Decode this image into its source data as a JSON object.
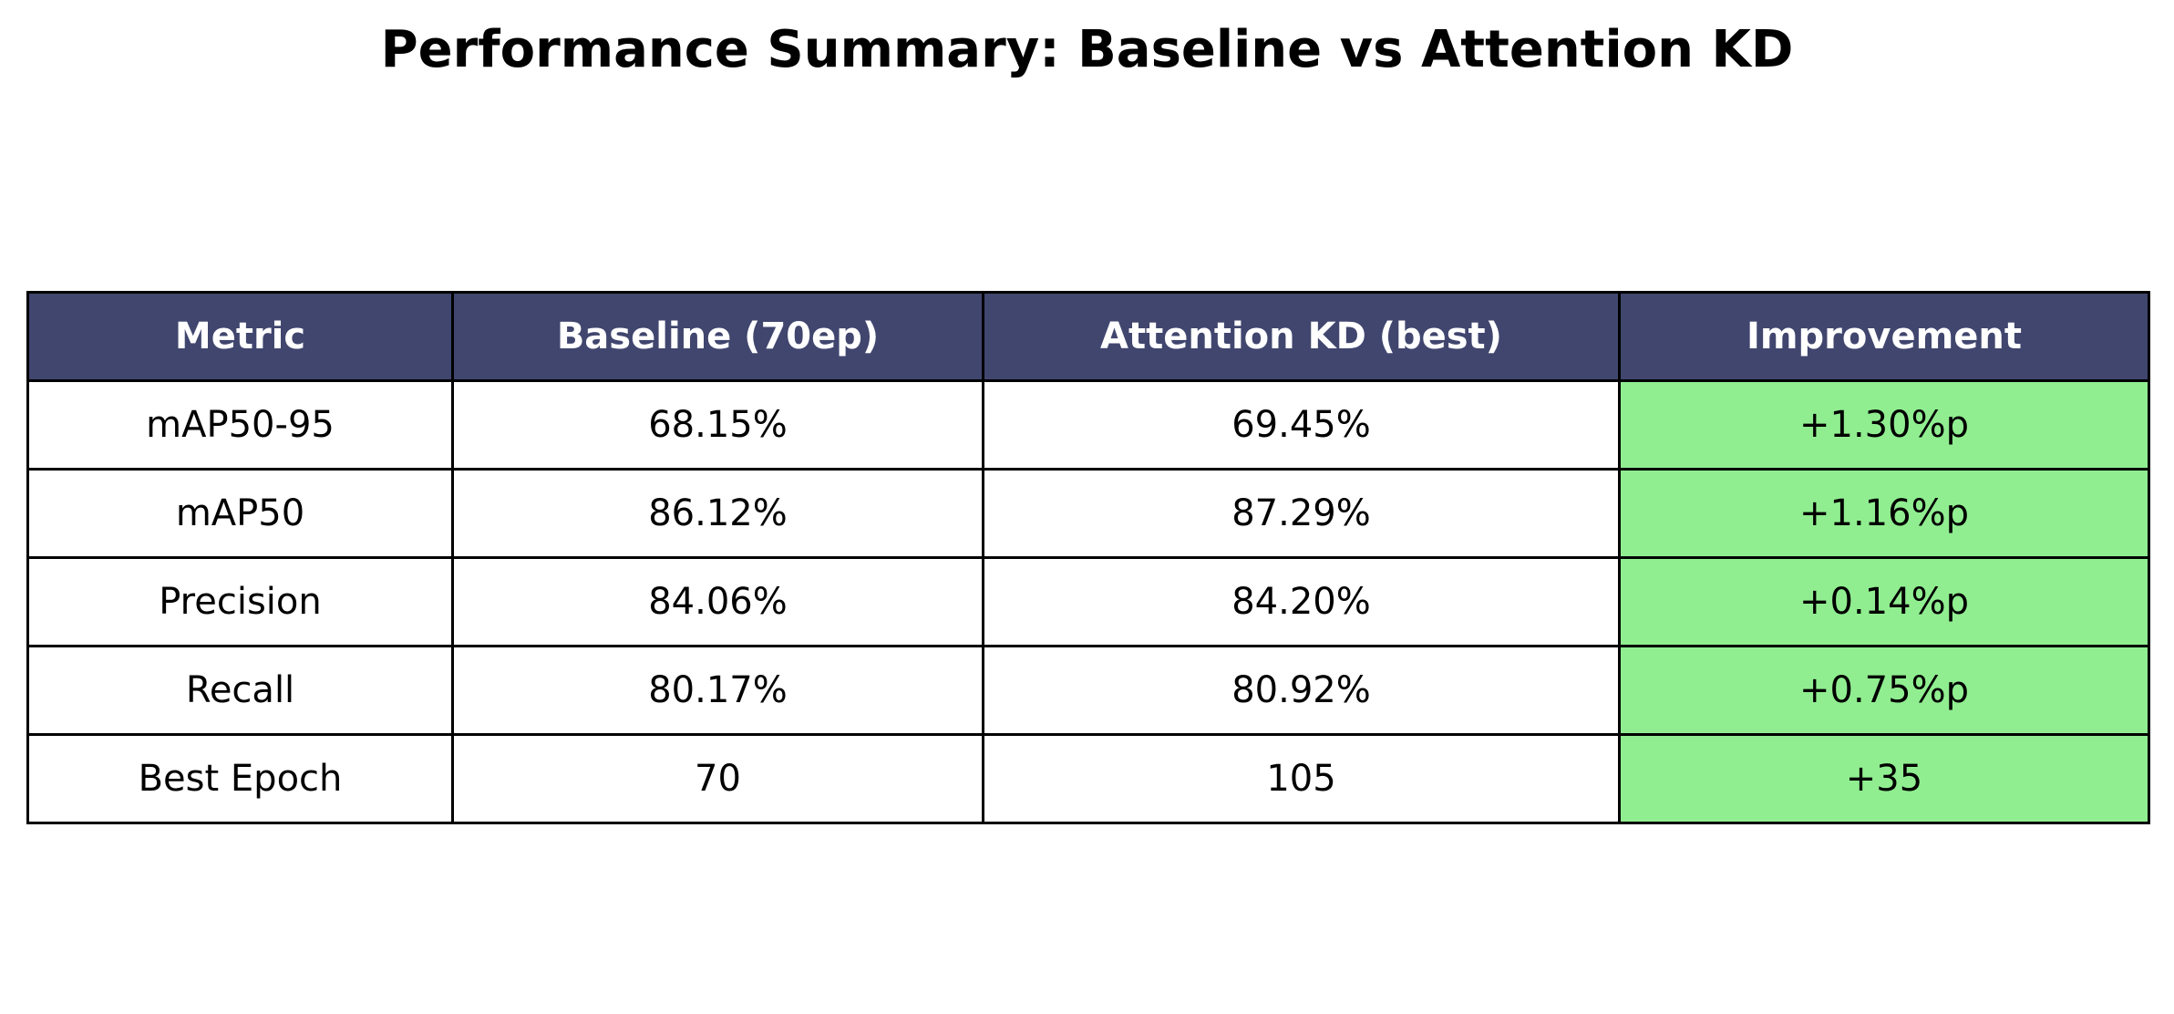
{
  "chart_data": {
    "type": "table",
    "title": "Performance Summary: Baseline vs Attention KD",
    "columns": [
      "Metric",
      "Baseline (70ep)",
      "Attention KD (best)",
      "Improvement"
    ],
    "rows": [
      [
        "mAP50-95",
        "68.15%",
        "69.45%",
        "+1.30%p"
      ],
      [
        "mAP50",
        "86.12%",
        "87.29%",
        "+1.16%p"
      ],
      [
        "Precision",
        "84.06%",
        "84.20%",
        "+0.14%p"
      ],
      [
        "Recall",
        "80.17%",
        "80.92%",
        "+0.75%p"
      ],
      [
        "Best Epoch",
        "70",
        "105",
        "+35"
      ]
    ]
  },
  "colors": {
    "header_background": "#40466e",
    "header_text": "#ffffff",
    "improvement_background": "#90ee90",
    "cell_background": "#ffffff",
    "border": "#000000"
  }
}
